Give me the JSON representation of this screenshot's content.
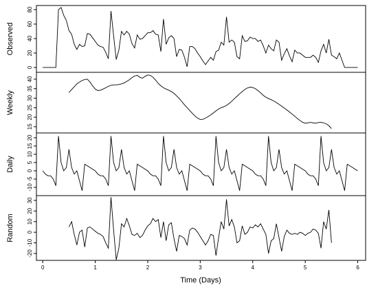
{
  "chart_data": {
    "type": "line",
    "xlabel": "Time (Days)",
    "color": "#000000",
    "xlim": [
      -0.12,
      6.15
    ],
    "xticks": [
      0,
      1,
      2,
      3,
      4,
      5,
      6
    ],
    "x": [
      0,
      0.05,
      0.1,
      0.15,
      0.2,
      0.25,
      0.3,
      0.35,
      0.4,
      0.45,
      0.5,
      0.55,
      0.6,
      0.65,
      0.7,
      0.75,
      0.8,
      0.85,
      0.9,
      0.95,
      1,
      1.05,
      1.1,
      1.15,
      1.2,
      1.25,
      1.3,
      1.35,
      1.4,
      1.45,
      1.5,
      1.55,
      1.6,
      1.65,
      1.7,
      1.75,
      1.8,
      1.85,
      1.9,
      1.95,
      2,
      2.05,
      2.1,
      2.15,
      2.2,
      2.25,
      2.3,
      2.35,
      2.4,
      2.45,
      2.5,
      2.55,
      2.6,
      2.65,
      2.7,
      2.75,
      2.8,
      2.85,
      2.9,
      2.95,
      3,
      3.05,
      3.1,
      3.15,
      3.2,
      3.25,
      3.3,
      3.35,
      3.4,
      3.45,
      3.5,
      3.55,
      3.6,
      3.65,
      3.7,
      3.75,
      3.8,
      3.85,
      3.9,
      3.95,
      4,
      4.05,
      4.1,
      4.15,
      4.2,
      4.25,
      4.3,
      4.35,
      4.4,
      4.45,
      4.5,
      4.55,
      4.6,
      4.65,
      4.7,
      4.75,
      4.8,
      4.85,
      4.9,
      4.95,
      5,
      5.05,
      5.1,
      5.15,
      5.2,
      5.25,
      5.3,
      5.35,
      5.4,
      5.45,
      5.5,
      5.55,
      5.6,
      5.65,
      5.7,
      5.75,
      5.8,
      5.85,
      5.9,
      5.95,
      6
    ],
    "panels": [
      {
        "name": "Observed",
        "ylim": [
          -6.7,
          85.7
        ],
        "yticks": [
          0,
          20,
          40,
          60,
          80
        ],
        "values": [
          0,
          0,
          0,
          0,
          0,
          0,
          80,
          83,
          72,
          65,
          51,
          46,
          32,
          25,
          32,
          29,
          30,
          47,
          46,
          41,
          36,
          31,
          29,
          28,
          21,
          12,
          78,
          44,
          11,
          24,
          50,
          45,
          50,
          46,
          33,
          27,
          45,
          39,
          40,
          44,
          48,
          48,
          51,
          46,
          45,
          22,
          67,
          32,
          41,
          44,
          40,
          15,
          25,
          24,
          14,
          1,
          29,
          29,
          26,
          20,
          15,
          9,
          4,
          9,
          14,
          10,
          22,
          24,
          35,
          31,
          70,
          35,
          38,
          35,
          15,
          12,
          44,
          36,
          37,
          42,
          40,
          40,
          36,
          38,
          30,
          20,
          31,
          26,
          23,
          38,
          35,
          10,
          19,
          26,
          16,
          8,
          24,
          20,
          20,
          17,
          14,
          14,
          14,
          17,
          14,
          7,
          23,
          32,
          20,
          39,
          17,
          15,
          12,
          20,
          10,
          0,
          0,
          0,
          0,
          0,
          0
        ]
      },
      {
        "name": "Weekly",
        "ylim": [
          11.7,
          43.6
        ],
        "yticks": [
          15,
          20,
          25,
          30,
          35,
          40
        ],
        "values": [
          null,
          null,
          null,
          null,
          null,
          null,
          null,
          null,
          null,
          null,
          33,
          34.5,
          36,
          37.5,
          38.5,
          39.3,
          39.8,
          40,
          38.5,
          36.5,
          34.8,
          34,
          34.2,
          34.8,
          35.5,
          36.2,
          36.8,
          37,
          37,
          37.2,
          37.5,
          38,
          38.8,
          39.7,
          40.8,
          41.7,
          42,
          41,
          40.5,
          41.5,
          42.2,
          42,
          41,
          39.5,
          37.8,
          36.5,
          35.5,
          34.8,
          34.2,
          33.5,
          32.5,
          31.2,
          29.8,
          28.2,
          26.5,
          25,
          23.5,
          22,
          20.6,
          19.5,
          18.8,
          18.9,
          19.5,
          20.3,
          21.2,
          22.2,
          23.3,
          24.3,
          25,
          25.5,
          26.2,
          27.2,
          28.4,
          29.7,
          31,
          32.3,
          33.5,
          34.6,
          35.4,
          35.8,
          35.6,
          35,
          34,
          32.8,
          31.5,
          30.5,
          29.8,
          29.2,
          28.5,
          27.7,
          26.8,
          25.8,
          24.8,
          23.8,
          22.7,
          21.6,
          20.5,
          19.3,
          18.2,
          17.3,
          16.8,
          17,
          17.3,
          17,
          16.8,
          17.2,
          17.3,
          17,
          16.5,
          15.5,
          14,
          null,
          null,
          null,
          null,
          null,
          null,
          null,
          null,
          null,
          null
        ]
      },
      {
        "name": "Daily",
        "ylim": [
          -15,
          22.9
        ],
        "yticks": [
          -10,
          -5,
          0,
          5,
          10,
          15,
          20
        ],
        "values": [
          0,
          -2,
          -3,
          -3,
          -5,
          -9,
          21,
          5,
          0,
          2,
          13,
          2,
          -2,
          0,
          -6,
          -12,
          4,
          3,
          2,
          1,
          0,
          -2,
          -3,
          -3,
          -5,
          -9,
          21,
          5,
          0,
          2,
          13,
          2,
          -2,
          0,
          -6,
          -12,
          4,
          3,
          2,
          1,
          0,
          -2,
          -3,
          -3,
          -5,
          -9,
          21,
          5,
          0,
          2,
          13,
          2,
          -2,
          0,
          -6,
          -12,
          4,
          3,
          2,
          1,
          0,
          -2,
          -3,
          -3,
          -5,
          -9,
          21,
          5,
          0,
          2,
          13,
          2,
          -2,
          0,
          -6,
          -12,
          4,
          3,
          2,
          1,
          0,
          -2,
          -3,
          -3,
          -5,
          -9,
          21,
          5,
          0,
          2,
          13,
          2,
          -2,
          0,
          -6,
          -12,
          4,
          3,
          2,
          1,
          0,
          -2,
          -3,
          -3,
          -5,
          -9,
          21,
          5,
          0,
          2,
          13,
          2,
          -2,
          0,
          -6,
          -12,
          4,
          3,
          2,
          1,
          0
        ]
      },
      {
        "name": "Random",
        "ylim": [
          -26.5,
          34.5
        ],
        "yticks": [
          -20,
          -10,
          0,
          10,
          20,
          30
        ],
        "values": [
          null,
          null,
          null,
          null,
          null,
          null,
          null,
          null,
          null,
          null,
          5,
          10,
          -2,
          -12,
          0,
          2,
          -14,
          4,
          5,
          3,
          1,
          -1,
          -2,
          -4,
          -10,
          -15,
          33,
          2,
          -26,
          -15,
          8,
          5,
          13,
          6,
          -2,
          -3,
          -1,
          -5,
          -3,
          2,
          6,
          8,
          13,
          10,
          12,
          -5,
          10,
          -8,
          7,
          9,
          -6,
          -18,
          -3,
          -4,
          -6,
          -12,
          2,
          4,
          3,
          0,
          -4,
          -8,
          -12,
          -8,
          -2,
          -3,
          -22,
          -5,
          10,
          3,
          31,
          6,
          12,
          5,
          -10,
          -8,
          6,
          -2,
          0,
          5,
          4,
          7,
          5,
          8,
          3,
          -2,
          -20,
          -8,
          -6,
          8,
          -5,
          -18,
          -4,
          2,
          -1,
          -2,
          -1,
          -2,
          0,
          -1,
          -3,
          -1,
          0,
          3,
          2,
          -1,
          -15,
          10,
          3,
          21,
          -10,
          null,
          null,
          null,
          null,
          null,
          null,
          null,
          null,
          null,
          null
        ]
      }
    ]
  }
}
